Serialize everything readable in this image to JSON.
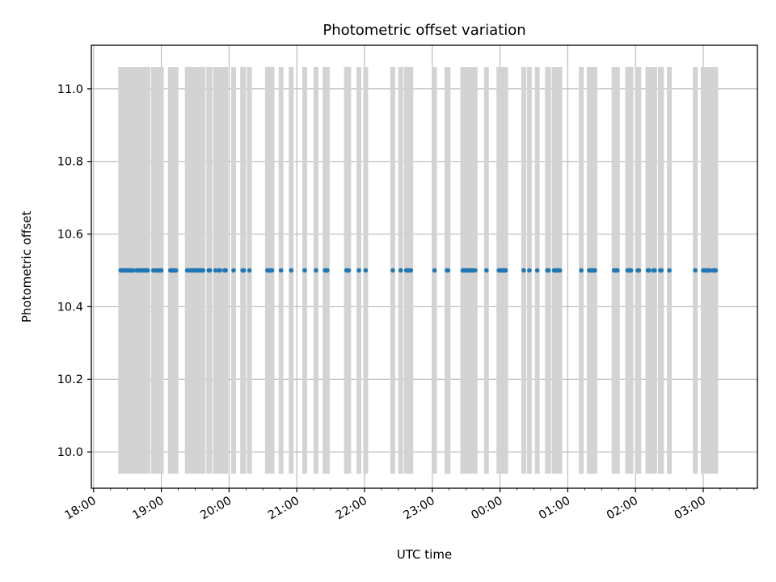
{
  "chart_data": {
    "type": "scatter",
    "title": "Photometric offset variation",
    "xlabel": "UTC time",
    "ylabel": "Photometric offset",
    "x_axis": {
      "kind": "datetime",
      "tick_labels": [
        "18:00",
        "19:00",
        "20:00",
        "21:00",
        "22:00",
        "23:00",
        "00:00",
        "01:00",
        "02:00",
        "03:00"
      ]
    },
    "xlim": [
      "17:58",
      "03:48"
    ],
    "ylim": [
      9.9,
      11.12
    ],
    "y_ticks": [
      10.0,
      10.2,
      10.4,
      10.6,
      10.8,
      11.0
    ],
    "y_tick_labels": [
      "10.0",
      "10.2",
      "10.4",
      "10.6",
      "10.8",
      "11.0"
    ],
    "grid": true,
    "errorbar_color": "#d3d3d3",
    "point_color": "#1f77b4",
    "series": [
      {
        "x": [
          "18:24",
          "18:25",
          "18:26",
          "18:27",
          "18:28",
          "18:29",
          "18:30",
          "18:31",
          "18:32",
          "18:33",
          "18:34",
          "18:35",
          "18:38",
          "18:39",
          "18:41",
          "18:42",
          "18:43",
          "18:44",
          "18:45",
          "18:46",
          "18:47",
          "18:48",
          "18:53",
          "18:54",
          "18:56",
          "18:57",
          "18:58",
          "18:59",
          "19:00",
          "19:08",
          "19:09",
          "19:10",
          "19:11",
          "19:12",
          "19:13",
          "19:23",
          "19:24",
          "19:26",
          "19:27",
          "19:28",
          "19:29",
          "19:30",
          "19:32",
          "19:33",
          "19:34",
          "19:35",
          "19:36",
          "19:37",
          "19:42",
          "19:43",
          "19:48",
          "19:51",
          "19:52",
          "19:56",
          "19:57",
          "20:04",
          "20:12",
          "20:13",
          "20:18",
          "20:34",
          "20:35",
          "20:36",
          "20:37",
          "20:38",
          "20:46",
          "20:55",
          "21:07",
          "21:17",
          "21:25",
          "21:26",
          "21:27",
          "21:44",
          "21:45",
          "21:46",
          "21:55",
          "22:01",
          "22:25",
          "22:32",
          "22:37",
          "22:38",
          "22:39",
          "22:40",
          "22:41",
          "23:02",
          "23:13",
          "23:14",
          "23:27",
          "23:28",
          "23:29",
          "23:30",
          "23:31",
          "23:32",
          "23:33",
          "23:34",
          "23:35",
          "23:36",
          "23:38",
          "23:48",
          "23:59",
          "00:00",
          "00:01",
          "00:02",
          "00:03",
          "00:04",
          "00:05",
          "00:21",
          "00:26",
          "00:33",
          "00:42",
          "00:43",
          "00:48",
          "00:49",
          "00:50",
          "00:51",
          "00:52",
          "00:53",
          "01:12",
          "01:19",
          "01:20",
          "01:21",
          "01:22",
          "01:23",
          "01:24",
          "01:41",
          "01:42",
          "01:43",
          "01:44",
          "01:53",
          "01:54",
          "01:55",
          "01:56",
          "02:02",
          "02:03",
          "02:11",
          "02:12",
          "02:16",
          "02:17",
          "02:22",
          "02:23",
          "02:30",
          "02:53",
          "03:00",
          "03:01",
          "03:02",
          "03:03",
          "03:04",
          "03:05",
          "03:06",
          "03:09",
          "03:10",
          "03:11"
        ],
        "y": 10.5,
        "y_error": 0.56
      }
    ]
  }
}
